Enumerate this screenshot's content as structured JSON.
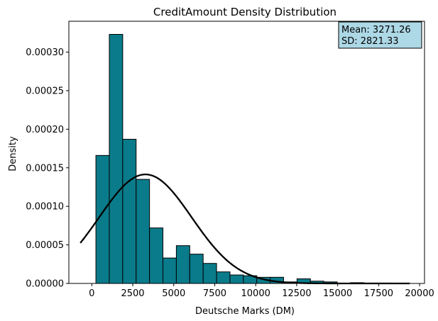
{
  "chart_data": {
    "type": "bar",
    "title": "CreditAmount Density Distribution",
    "xlabel": "Deutsche Marks (DM)",
    "ylabel": "Density",
    "xlim": [
      -1400,
      20300
    ],
    "ylim": [
      0,
      0.00034
    ],
    "xticks": [
      0,
      2500,
      5000,
      7500,
      10000,
      12500,
      15000,
      17500,
      20000
    ],
    "xtick_labels": [
      "0",
      "2500",
      "5000",
      "7500",
      "10000",
      "12500",
      "15000",
      "17500",
      "20000"
    ],
    "yticks": [
      0,
      5e-05,
      0.0001,
      0.00015,
      0.0002,
      0.00025,
      0.0003
    ],
    "ytick_labels": [
      "0.00000",
      "0.00005",
      "0.00010",
      "0.00015",
      "0.00020",
      "0.00025",
      "0.00030"
    ],
    "bar_color": "#0a7b8a",
    "bar_edge_color": "#000000",
    "curve_color": "#000000",
    "bins": {
      "start": 250,
      "width": 818,
      "values": [
        0.000166,
        0.000323,
        0.000187,
        0.000135,
        7.2e-05,
        3.3e-05,
        4.9e-05,
        3.8e-05,
        2.6e-05,
        1.5e-05,
        1.1e-05,
        1e-05,
        8e-06,
        8e-06,
        2e-06,
        6e-06,
        3e-06,
        2e-06,
        0.0,
        1e-06,
        5e-07,
        5e-07
      ]
    },
    "normal_curve": {
      "mean": 3271.26,
      "sd": 2821.33,
      "x_range": [
        -700,
        19400
      ]
    },
    "stats_box": {
      "mean_label": "Mean: 3271.26",
      "sd_label": "SD: 2821.33",
      "background": "#add8e6",
      "position": "top-right"
    }
  }
}
